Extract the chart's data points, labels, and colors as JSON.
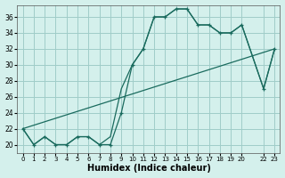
{
  "xlabel": "Humidex (Indice chaleur)",
  "bg_color": "#d4f0ec",
  "grid_color": "#a0ccc8",
  "line_color": "#1a6b5e",
  "xlim": [
    -0.5,
    23.5
  ],
  "ylim": [
    19.0,
    37.5
  ],
  "yticks": [
    20,
    22,
    24,
    26,
    28,
    30,
    32,
    34,
    36
  ],
  "xtick_positions": [
    0,
    1,
    2,
    3,
    4,
    5,
    6,
    7,
    8,
    9,
    10,
    11,
    12,
    13,
    14,
    15,
    16,
    17,
    18,
    19,
    20,
    22,
    23
  ],
  "xtick_labels": [
    "0",
    "1",
    "2",
    "3",
    "4",
    "5",
    "6",
    "7",
    "8",
    "9",
    "10",
    "11",
    "12",
    "13",
    "14",
    "15",
    "16",
    "17",
    "18",
    "19",
    "20",
    "22",
    "23"
  ],
  "curve1_x": [
    0,
    1,
    2,
    3,
    4,
    5,
    6,
    7,
    8,
    9,
    10,
    11,
    12,
    13,
    14,
    15,
    16,
    17,
    18,
    19,
    20,
    22,
    23
  ],
  "curve1_y": [
    22,
    20,
    21,
    20,
    20,
    21,
    21,
    20,
    20,
    24,
    30,
    32,
    36,
    36,
    37,
    37,
    35,
    35,
    34,
    34,
    35,
    27,
    32
  ],
  "curve2_x": [
    0,
    1,
    2,
    3,
    4,
    5,
    6,
    7,
    8,
    9,
    10,
    11,
    12,
    13,
    14,
    15,
    16,
    17,
    18,
    19,
    20,
    22,
    23
  ],
  "curve2_y": [
    22,
    20,
    21,
    20,
    20,
    21,
    21,
    20,
    21,
    27,
    30,
    32,
    36,
    36,
    37,
    37,
    35,
    35,
    34,
    34,
    35,
    27,
    32
  ],
  "line3_x": [
    0,
    23
  ],
  "line3_y": [
    22,
    32
  ]
}
